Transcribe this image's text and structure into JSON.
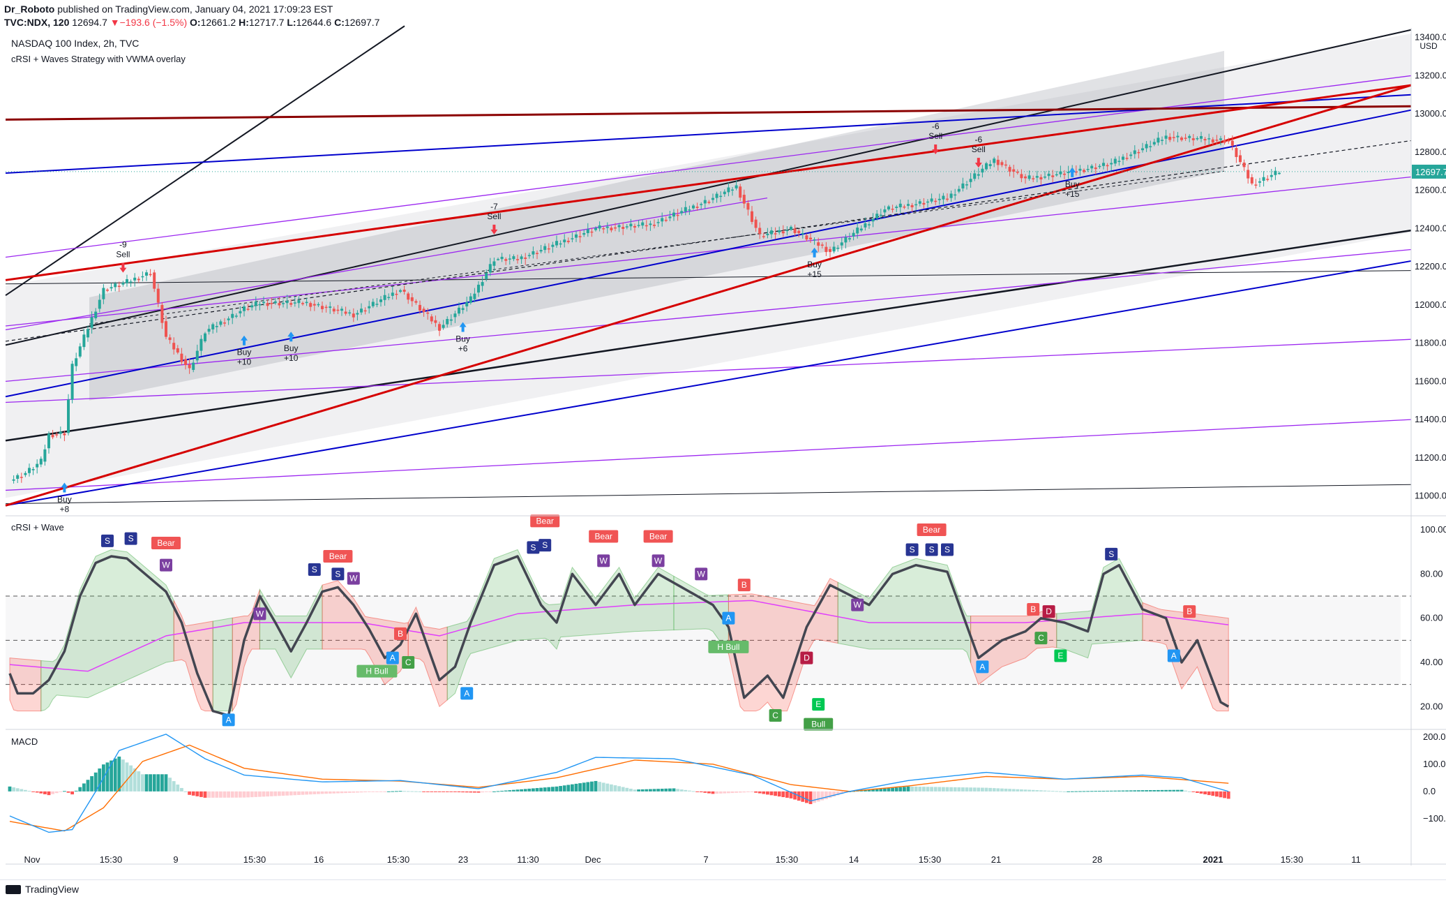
{
  "header": {
    "publisher": "Dr_Roboto",
    "published_text": "published on TradingView.com, January 04, 2021 17:09:23 EST",
    "symbol": "TVC:NDX, 120",
    "last": "12694.7",
    "change": "−193.6 (−1.5%)",
    "open_label": "O:",
    "open": "12661.2",
    "high_label": "H:",
    "high": "12717.7",
    "low_label": "L:",
    "low": "12644.6",
    "close_label": "C:",
    "close": "12697.7"
  },
  "main_pane": {
    "title": "NASDAQ 100 Index, 2h, TVC",
    "indicator": "cRSI + Waves Strategy with VWMA overlay",
    "currency": "USD",
    "last_price_label": "12697.7"
  },
  "crsi_pane": {
    "title": "cRSI + Wave"
  },
  "macd_pane": {
    "title": "MACD"
  },
  "footer": {
    "brand": "TradingView"
  },
  "colors": {
    "up": "#26a69a",
    "down": "#ef5350",
    "trend_red": "#d50000",
    "trend_blue": "#0000cc",
    "purple": "#9c27f0",
    "crsi_line": "#434651",
    "vwma": "#e040fb",
    "macd": "#2196f3",
    "signal": "#ff6d00"
  },
  "chart_data": [
    {
      "type": "candlestick",
      "title": "NASDAQ 100 Index, 2h, TVC",
      "ylim": [
        10900,
        13450
      ],
      "yticks": [
        11000,
        11200,
        11400,
        11600,
        11800,
        12000,
        12200,
        12400,
        12600,
        12800,
        13000,
        13200,
        13400
      ],
      "ytick_labels": [
        "11000.0",
        "11200.0",
        "11400.0",
        "11600.0",
        "11800.0",
        "12000.0",
        "12200.0",
        "12400.0",
        "12600.0",
        "12800.0",
        "13000.0",
        "13200.0",
        "13400.0"
      ],
      "xticks": [
        "Nov",
        "15:30",
        "9",
        "15:30",
        "16",
        "15:30",
        "23",
        "11:30",
        "Dec",
        "7",
        "15:30",
        "14",
        "15:30",
        "21",
        "28",
        "2021",
        "15:30",
        "11"
      ],
      "last_price": 12697.7,
      "close_path_anchors": [
        [
          0,
          11080
        ],
        [
          4,
          11120
        ],
        [
          8,
          11180
        ],
        [
          10,
          11320
        ],
        [
          14,
          11330
        ],
        [
          16,
          11680
        ],
        [
          24,
          12080
        ],
        [
          30,
          12120
        ],
        [
          36,
          12170
        ],
        [
          40,
          11830
        ],
        [
          46,
          11660
        ],
        [
          50,
          11860
        ],
        [
          60,
          11980
        ],
        [
          64,
          12010
        ],
        [
          76,
          12010
        ],
        [
          88,
          11950
        ],
        [
          100,
          12080
        ],
        [
          110,
          11880
        ],
        [
          118,
          12030
        ],
        [
          124,
          12240
        ],
        [
          130,
          12240
        ],
        [
          150,
          12400
        ],
        [
          164,
          12420
        ],
        [
          178,
          12540
        ],
        [
          186,
          12620
        ],
        [
          192,
          12360
        ],
        [
          200,
          12400
        ],
        [
          210,
          12280
        ],
        [
          224,
          12500
        ],
        [
          240,
          12560
        ],
        [
          252,
          12760
        ],
        [
          260,
          12660
        ],
        [
          270,
          12690
        ],
        [
          282,
          12740
        ],
        [
          296,
          12880
        ],
        [
          312,
          12860
        ],
        [
          318,
          12630
        ],
        [
          325,
          12700
        ]
      ],
      "annotations": [
        {
          "text": "-9",
          "text2": "Sell",
          "kind": "sell",
          "x_index": 29,
          "y": 12220
        },
        {
          "text": "-7",
          "text2": "Sell",
          "kind": "sell",
          "x_index": 124,
          "y": 12420
        },
        {
          "text": "-6",
          "text2": "Sell",
          "kind": "sell",
          "x_index": 237,
          "y": 12840
        },
        {
          "text": "-6",
          "text2": "Sell",
          "kind": "sell",
          "x_index": 248,
          "y": 12770
        },
        {
          "text": "Buy",
          "text2": "+8",
          "kind": "buy",
          "x_index": 14,
          "y": 11070
        },
        {
          "text": "Buy",
          "text2": "+10",
          "kind": "buy",
          "x_index": 60,
          "y": 11840
        },
        {
          "text": "Buy",
          "text2": "+10",
          "kind": "buy",
          "x_index": 72,
          "y": 11860
        },
        {
          "text": "Buy",
          "text2": "+6",
          "kind": "buy",
          "x_index": 116,
          "y": 11910
        },
        {
          "text": "Buy",
          "text2": "+15",
          "kind": "buy",
          "x_index": 206,
          "y": 12300
        },
        {
          "text": "Buy",
          "text2": "+15",
          "kind": "buy",
          "x_index": 272,
          "y": 12720
        }
      ]
    },
    {
      "type": "line",
      "title": "cRSI + Wave",
      "ylim": [
        10,
        106
      ],
      "yticks": [
        20,
        40,
        60,
        80,
        100
      ],
      "ytick_labels": [
        "20.00",
        "40.00",
        "60.00",
        "80.00",
        "100.00"
      ],
      "levels": [
        30,
        50,
        70
      ],
      "crsi_anchors": [
        [
          0,
          35
        ],
        [
          2,
          26
        ],
        [
          6,
          26
        ],
        [
          10,
          32
        ],
        [
          14,
          45
        ],
        [
          18,
          70
        ],
        [
          22,
          85
        ],
        [
          26,
          88
        ],
        [
          30,
          87
        ],
        [
          36,
          78
        ],
        [
          40,
          72
        ],
        [
          44,
          58
        ],
        [
          48,
          35
        ],
        [
          52,
          18
        ],
        [
          56,
          16
        ],
        [
          60,
          50
        ],
        [
          64,
          70
        ],
        [
          68,
          58
        ],
        [
          72,
          45
        ],
        [
          76,
          58
        ],
        [
          80,
          72
        ],
        [
          84,
          74
        ],
        [
          88,
          66
        ],
        [
          92,
          55
        ],
        [
          96,
          42
        ],
        [
          100,
          48
        ],
        [
          104,
          62
        ],
        [
          110,
          32
        ],
        [
          114,
          38
        ],
        [
          118,
          58
        ],
        [
          124,
          84
        ],
        [
          130,
          88
        ],
        [
          136,
          66
        ],
        [
          140,
          58
        ],
        [
          144,
          80
        ],
        [
          150,
          66
        ],
        [
          156,
          80
        ],
        [
          160,
          66
        ],
        [
          166,
          80
        ],
        [
          172,
          74
        ],
        [
          180,
          66
        ],
        [
          184,
          56
        ],
        [
          188,
          24
        ],
        [
          194,
          34
        ],
        [
          198,
          24
        ],
        [
          204,
          56
        ],
        [
          210,
          75
        ],
        [
          220,
          66
        ],
        [
          226,
          80
        ],
        [
          232,
          84
        ],
        [
          240,
          81
        ],
        [
          248,
          42
        ],
        [
          254,
          50
        ],
        [
          260,
          54
        ],
        [
          264,
          60
        ],
        [
          270,
          58
        ],
        [
          276,
          54
        ],
        [
          280,
          80
        ],
        [
          284,
          84
        ],
        [
          290,
          64
        ],
        [
          296,
          60
        ],
        [
          300,
          40
        ],
        [
          304,
          50
        ],
        [
          310,
          22
        ],
        [
          312,
          20
        ]
      ],
      "vwma_anchors": [
        [
          0,
          39
        ],
        [
          20,
          36
        ],
        [
          40,
          52
        ],
        [
          60,
          58
        ],
        [
          90,
          58
        ],
        [
          110,
          52
        ],
        [
          130,
          62
        ],
        [
          160,
          66
        ],
        [
          190,
          68
        ],
        [
          220,
          58
        ],
        [
          260,
          58
        ],
        [
          290,
          62
        ],
        [
          312,
          57
        ]
      ],
      "labels": [
        {
          "text": "S",
          "kind": "s",
          "x_index": 25,
          "y": 95
        },
        {
          "text": "S",
          "kind": "s",
          "x_index": 31,
          "y": 96
        },
        {
          "text": "Bear",
          "kind": "bear",
          "x_index": 40,
          "y": 94
        },
        {
          "text": "W",
          "kind": "w",
          "x_index": 40,
          "y": 84
        },
        {
          "text": "A",
          "kind": "a",
          "x_index": 56,
          "y": 14
        },
        {
          "text": "W",
          "kind": "w",
          "x_index": 64,
          "y": 62
        },
        {
          "text": "S",
          "kind": "s",
          "x_index": 78,
          "y": 82
        },
        {
          "text": "Bear",
          "kind": "bear",
          "x_index": 84,
          "y": 88
        },
        {
          "text": "S",
          "kind": "s",
          "x_index": 84,
          "y": 80
        },
        {
          "text": "W",
          "kind": "w",
          "x_index": 88,
          "y": 78
        },
        {
          "text": "H Bull",
          "kind": "hbull",
          "x_index": 94,
          "y": 36
        },
        {
          "text": "A",
          "kind": "a",
          "x_index": 98,
          "y": 42
        },
        {
          "text": "B",
          "kind": "b",
          "x_index": 100,
          "y": 53
        },
        {
          "text": "C",
          "kind": "c",
          "x_index": 102,
          "y": 40
        },
        {
          "text": "A",
          "kind": "a",
          "x_index": 117,
          "y": 26
        },
        {
          "text": "S",
          "kind": "s",
          "x_index": 134,
          "y": 92
        },
        {
          "text": "S",
          "kind": "s",
          "x_index": 137,
          "y": 93
        },
        {
          "text": "Bear",
          "kind": "bear",
          "x_index": 137,
          "y": 104
        },
        {
          "text": "Bear",
          "kind": "bear",
          "x_index": 152,
          "y": 97
        },
        {
          "text": "W",
          "kind": "w",
          "x_index": 152,
          "y": 86
        },
        {
          "text": "Bear",
          "kind": "bear",
          "x_index": 166,
          "y": 97
        },
        {
          "text": "W",
          "kind": "w",
          "x_index": 166,
          "y": 86
        },
        {
          "text": "W",
          "kind": "w",
          "x_index": 177,
          "y": 80
        },
        {
          "text": "B",
          "kind": "b",
          "x_index": 188,
          "y": 75
        },
        {
          "text": "A",
          "kind": "a",
          "x_index": 184,
          "y": 60
        },
        {
          "text": "H Bull",
          "kind": "hbull",
          "x_index": 184,
          "y": 47
        },
        {
          "text": "C",
          "kind": "c",
          "x_index": 196,
          "y": 16
        },
        {
          "text": "D",
          "kind": "d",
          "x_index": 204,
          "y": 42
        },
        {
          "text": "E",
          "kind": "e",
          "x_index": 207,
          "y": 21
        },
        {
          "text": "Bull",
          "kind": "bull",
          "x_index": 207,
          "y": 12
        },
        {
          "text": "W",
          "kind": "w",
          "x_index": 217,
          "y": 66
        },
        {
          "text": "Bear",
          "kind": "bear",
          "x_index": 236,
          "y": 100
        },
        {
          "text": "S",
          "kind": "s",
          "x_index": 231,
          "y": 91
        },
        {
          "text": "S",
          "kind": "s",
          "x_index": 236,
          "y": 91
        },
        {
          "text": "S",
          "kind": "s",
          "x_index": 240,
          "y": 91
        },
        {
          "text": "A",
          "kind": "a",
          "x_index": 249,
          "y": 38
        },
        {
          "text": "B",
          "kind": "b",
          "x_index": 262,
          "y": 64
        },
        {
          "text": "D",
          "kind": "d",
          "x_index": 266,
          "y": 63
        },
        {
          "text": "C",
          "kind": "c",
          "x_index": 264,
          "y": 51
        },
        {
          "text": "E",
          "kind": "e",
          "x_index": 269,
          "y": 43
        },
        {
          "text": "S",
          "kind": "s",
          "x_index": 282,
          "y": 89
        },
        {
          "text": "A",
          "kind": "a",
          "x_index": 298,
          "y": 43
        },
        {
          "text": "B",
          "kind": "b",
          "x_index": 302,
          "y": 63
        }
      ]
    },
    {
      "type": "bar",
      "title": "MACD",
      "ylim": [
        -200,
        225
      ],
      "yticks": [
        -100,
        0,
        100,
        200
      ],
      "ytick_labels": [
        "−100.0",
        "0.0",
        "100.0",
        "200.0"
      ],
      "macd_anchors": [
        [
          0,
          -90
        ],
        [
          10,
          -150
        ],
        [
          16,
          -140
        ],
        [
          22,
          0
        ],
        [
          28,
          150
        ],
        [
          40,
          210
        ],
        [
          50,
          120
        ],
        [
          60,
          60
        ],
        [
          80,
          35
        ],
        [
          100,
          40
        ],
        [
          120,
          10
        ],
        [
          140,
          70
        ],
        [
          150,
          125
        ],
        [
          170,
          120
        ],
        [
          190,
          60
        ],
        [
          205,
          -35
        ],
        [
          215,
          0
        ],
        [
          230,
          40
        ],
        [
          250,
          70
        ],
        [
          270,
          45
        ],
        [
          290,
          60
        ],
        [
          300,
          50
        ],
        [
          312,
          0
        ]
      ],
      "signal_anchors": [
        [
          0,
          -110
        ],
        [
          14,
          -145
        ],
        [
          24,
          -60
        ],
        [
          34,
          110
        ],
        [
          46,
          170
        ],
        [
          60,
          85
        ],
        [
          80,
          45
        ],
        [
          100,
          38
        ],
        [
          120,
          15
        ],
        [
          140,
          50
        ],
        [
          160,
          115
        ],
        [
          180,
          100
        ],
        [
          200,
          25
        ],
        [
          215,
          0
        ],
        [
          230,
          20
        ],
        [
          250,
          55
        ],
        [
          270,
          45
        ],
        [
          290,
          55
        ],
        [
          312,
          30
        ]
      ]
    }
  ]
}
